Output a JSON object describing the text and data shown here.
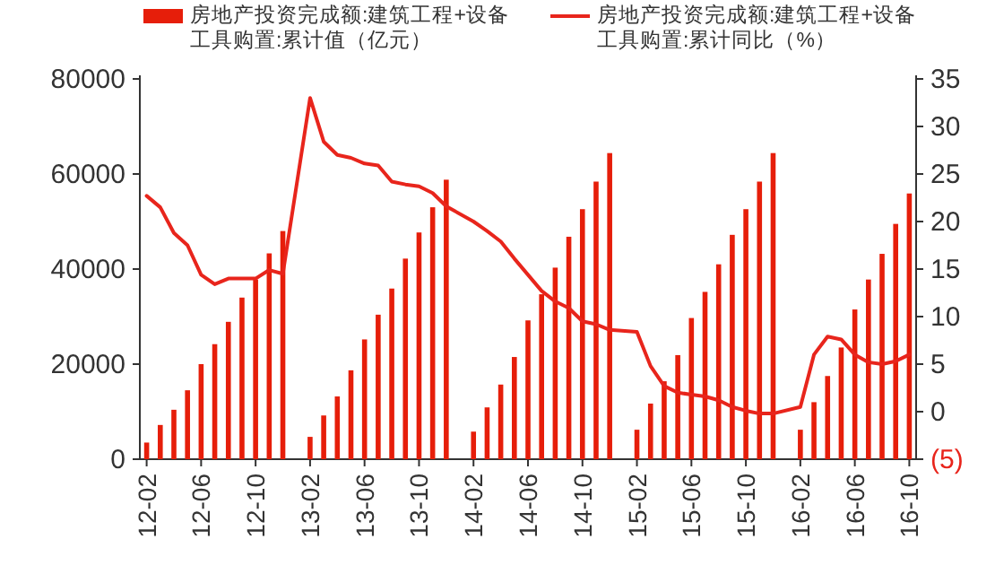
{
  "chart_data": {
    "type": "bar",
    "categories": [
      "12-02",
      null,
      null,
      null,
      "12-06",
      null,
      null,
      null,
      "12-10",
      null,
      null,
      null,
      "13-02",
      null,
      null,
      null,
      "13-06",
      null,
      null,
      null,
      "13-10",
      null,
      null,
      null,
      "14-02",
      null,
      null,
      null,
      "14-06",
      null,
      null,
      null,
      "14-10",
      null,
      null,
      null,
      "15-02",
      null,
      null,
      null,
      "15-06",
      null,
      null,
      null,
      "15-10",
      null,
      null,
      null,
      "16-02",
      null,
      null,
      null,
      "16-06",
      null,
      null,
      null,
      "16-10"
    ],
    "series": [
      {
        "name": "房地产投资完成额:建筑工程+设备工具购置:累计值（亿元）",
        "color": "#e61e0a",
        "values": [
          3500,
          7200,
          10400,
          14500,
          20000,
          24200,
          28900,
          34000,
          37800,
          43300,
          48000,
          null,
          4700,
          9200,
          13200,
          18700,
          25200,
          30400,
          35900,
          42200,
          47700,
          53000,
          58800,
          null,
          5800,
          10900,
          15700,
          21500,
          29200,
          34700,
          40300,
          46800,
          52600,
          58400,
          64400,
          null,
          6200,
          11700,
          16400,
          21900,
          29700,
          35200,
          41000,
          47200,
          52600,
          58400,
          64400,
          null,
          6200,
          12000,
          17500,
          23500,
          31500,
          37800,
          43200,
          49500,
          55900
        ]
      },
      {
        "name": "房地产投资完成额:建筑工程+设备工具购置:累计同比（%）",
        "type": "line",
        "axis": "y2",
        "color": "#e8251c",
        "values": [
          22.7,
          21.5,
          18.8,
          17.5,
          14.4,
          13.4,
          14.0,
          14.0,
          14.0,
          14.9,
          14.5,
          null,
          33.0,
          28.4,
          27.0,
          26.7,
          26.1,
          25.9,
          24.2,
          23.9,
          23.7,
          23.0,
          21.6,
          null,
          20.0,
          19.0,
          17.9,
          16.1,
          14.4,
          12.7,
          11.6,
          10.9,
          9.5,
          9.2,
          8.6,
          null,
          8.4,
          4.8,
          2.7,
          2.0,
          1.8,
          1.6,
          1.2,
          0.5,
          0.1,
          -0.2,
          -0.2,
          null,
          0.5,
          6.0,
          7.9,
          7.6,
          6.0,
          5.2,
          5.0,
          5.3,
          6.0
        ]
      }
    ],
    "ylim": [
      0,
      80000
    ],
    "yticks": [
      0,
      20000,
      40000,
      60000,
      80000
    ],
    "y2lim": [
      -5,
      35
    ],
    "y2ticks": [
      {
        "value": -5,
        "label": "(5)"
      },
      0,
      5,
      10,
      15,
      20,
      25,
      30,
      35
    ],
    "legend": "top"
  }
}
